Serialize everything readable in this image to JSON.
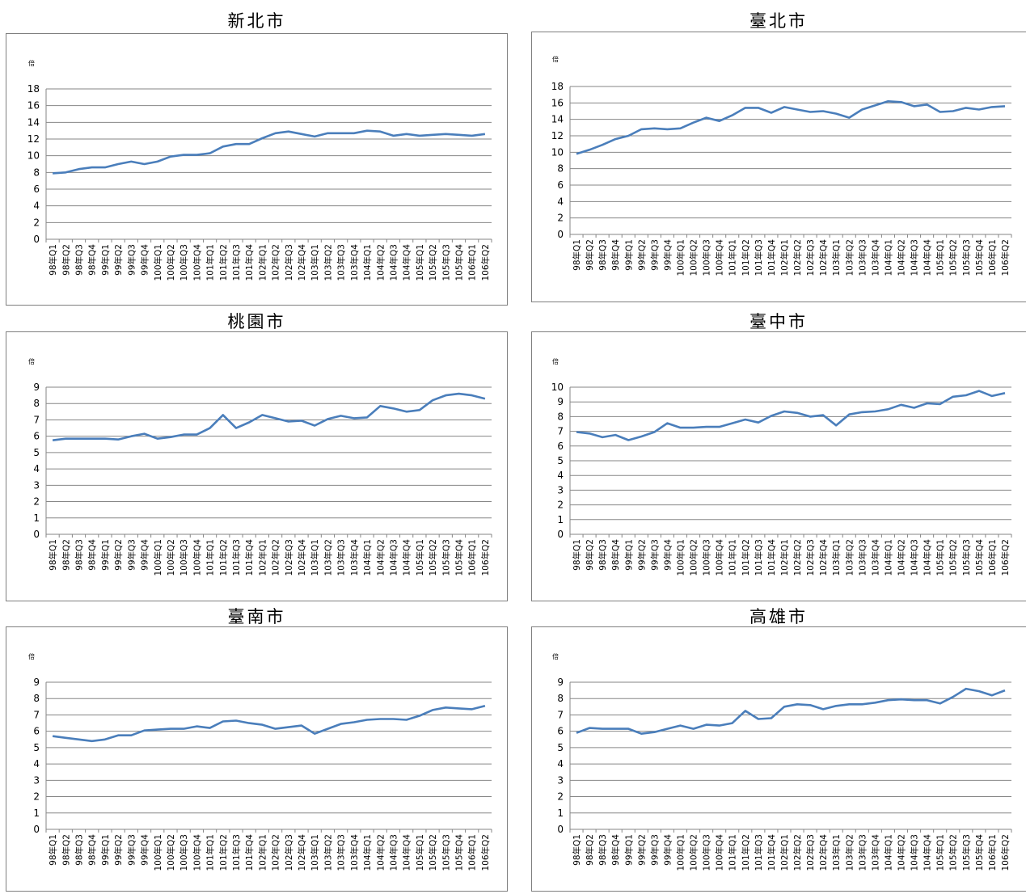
{
  "quarters": [
    "98年Q1",
    "98年Q2",
    "98年Q3",
    "98年Q4",
    "99年Q1",
    "99年Q2",
    "99年Q3",
    "99年Q4",
    "100年Q1",
    "100年Q2",
    "100年Q3",
    "100年Q4",
    "101年Q1",
    "101年Q2",
    "101年Q3",
    "101年Q4",
    "102年Q1",
    "102年Q2",
    "102年Q3",
    "102年Q4",
    "103年Q1",
    "103年Q2",
    "103年Q3",
    "103年Q4",
    "104年Q1",
    "104年Q2",
    "104年Q3",
    "104年Q4",
    "105年Q1",
    "105年Q2",
    "105年Q3",
    "105年Q4",
    "106年Q1",
    "106年Q2"
  ],
  "line_color": "#4a7ebb",
  "chart_data": [
    {
      "type": "line",
      "title": "新北市",
      "ylabel": "倍",
      "ylim": [
        0,
        18
      ],
      "yticks": [
        0,
        2,
        4,
        6,
        8,
        10,
        12,
        14,
        16,
        18
      ],
      "grid": true,
      "series": [
        {
          "values": [
            7.9,
            8.0,
            8.4,
            8.6,
            8.6,
            9.0,
            9.3,
            9.0,
            9.3,
            9.9,
            10.1,
            10.1,
            10.3,
            11.1,
            11.4,
            11.4,
            12.1,
            12.7,
            12.9,
            12.6,
            12.3,
            12.7,
            12.7,
            12.7,
            13.0,
            12.9,
            12.4,
            12.6,
            12.4,
            12.5,
            12.6,
            12.5,
            12.4,
            12.6
          ]
        }
      ]
    },
    {
      "type": "line",
      "title": "臺北市",
      "ylabel": "倍",
      "ylim": [
        0,
        18
      ],
      "yticks": [
        0,
        2,
        4,
        6,
        8,
        10,
        12,
        14,
        16,
        18
      ],
      "grid": true,
      "series": [
        {
          "values": [
            9.8,
            10.3,
            10.9,
            11.6,
            12.0,
            12.8,
            12.9,
            12.8,
            12.9,
            13.6,
            14.2,
            13.8,
            14.5,
            15.4,
            15.4,
            14.8,
            15.5,
            15.2,
            14.9,
            15.0,
            14.7,
            14.2,
            15.2,
            15.7,
            16.2,
            16.1,
            15.6,
            15.8,
            14.9,
            15.0,
            15.4,
            15.2,
            15.5,
            15.6
          ]
        }
      ]
    },
    {
      "type": "line",
      "title": "桃園市",
      "ylabel": "倍",
      "ylim": [
        0,
        9
      ],
      "yticks": [
        0,
        1,
        2,
        3,
        4,
        5,
        6,
        7,
        8,
        9
      ],
      "grid": true,
      "series": [
        {
          "values": [
            5.75,
            5.85,
            5.85,
            5.85,
            5.85,
            5.8,
            6.0,
            6.15,
            5.85,
            5.95,
            6.1,
            6.1,
            6.5,
            7.3,
            6.5,
            6.85,
            7.3,
            7.1,
            6.9,
            6.95,
            6.65,
            7.05,
            7.25,
            7.1,
            7.15,
            7.85,
            7.7,
            7.5,
            7.6,
            8.2,
            8.5,
            8.6,
            8.5,
            8.3
          ]
        }
      ]
    },
    {
      "type": "line",
      "title": "臺中市",
      "ylabel": "倍",
      "ylim": [
        0,
        10
      ],
      "yticks": [
        0,
        1,
        2,
        3,
        4,
        5,
        6,
        7,
        8,
        9,
        10
      ],
      "grid": true,
      "series": [
        {
          "values": [
            6.95,
            6.85,
            6.6,
            6.75,
            6.4,
            6.65,
            6.95,
            7.55,
            7.25,
            7.25,
            7.3,
            7.3,
            7.55,
            7.8,
            7.6,
            8.05,
            8.35,
            8.25,
            8.0,
            8.1,
            7.4,
            8.15,
            8.3,
            8.35,
            8.5,
            8.8,
            8.6,
            8.9,
            8.85,
            9.35,
            9.45,
            9.75,
            9.4,
            9.6
          ]
        }
      ]
    },
    {
      "type": "line",
      "title": "臺南市",
      "ylabel": "倍",
      "ylim": [
        0,
        9
      ],
      "yticks": [
        0,
        1,
        2,
        3,
        4,
        5,
        6,
        7,
        8,
        9
      ],
      "grid": true,
      "series": [
        {
          "values": [
            5.7,
            5.6,
            5.5,
            5.4,
            5.5,
            5.75,
            5.75,
            6.05,
            6.1,
            6.15,
            6.15,
            6.3,
            6.2,
            6.6,
            6.65,
            6.5,
            6.4,
            6.15,
            6.25,
            6.35,
            5.85,
            6.15,
            6.45,
            6.55,
            6.7,
            6.75,
            6.75,
            6.7,
            6.95,
            7.3,
            7.45,
            7.4,
            7.35,
            7.55
          ]
        }
      ]
    },
    {
      "type": "line",
      "title": "高雄市",
      "ylabel": "倍",
      "ylim": [
        0,
        9
      ],
      "yticks": [
        0,
        1,
        2,
        3,
        4,
        5,
        6,
        7,
        8,
        9
      ],
      "grid": true,
      "series": [
        {
          "values": [
            5.9,
            6.2,
            6.15,
            6.15,
            6.15,
            5.85,
            5.95,
            6.15,
            6.35,
            6.15,
            6.4,
            6.35,
            6.5,
            7.25,
            6.75,
            6.8,
            7.5,
            7.65,
            7.6,
            7.35,
            7.55,
            7.65,
            7.65,
            7.75,
            7.9,
            7.95,
            7.9,
            7.9,
            7.7,
            8.1,
            8.6,
            8.45,
            8.2,
            8.5
          ]
        }
      ]
    }
  ]
}
